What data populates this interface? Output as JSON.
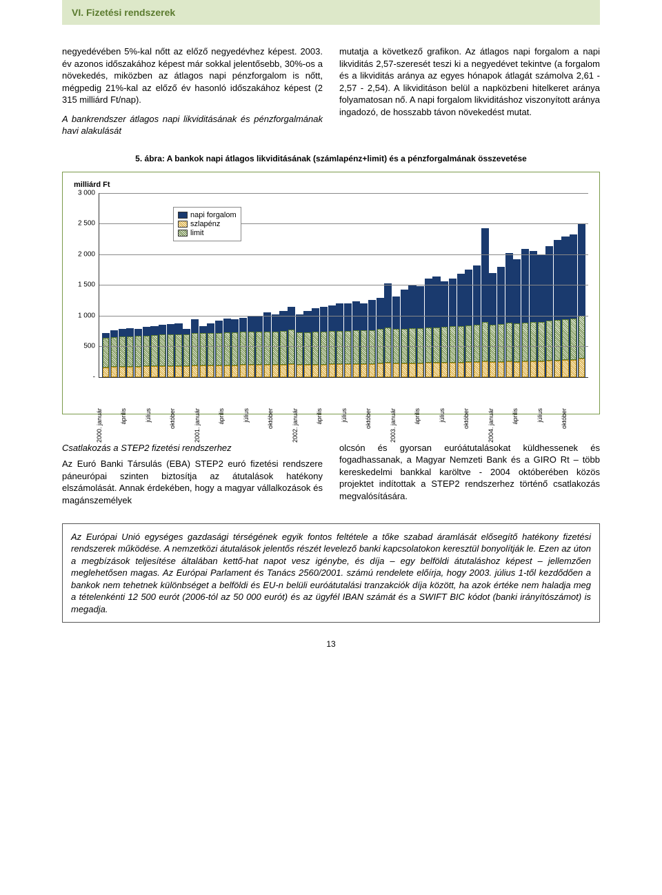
{
  "header": {
    "title": "VI. Fizetési rendszerek"
  },
  "para": {
    "left": "negyedévében 5%-kal nőtt az előző negyedévhez képest. 2003. év azonos időszakához képest már sokkal jelentősebb, 30%-os a növekedés, miközben az átlagos napi pénzforgalom is nőtt, mégpedig 21%-kal az előző év hasonló időszakához képest (2 315 milliárd Ft/nap).",
    "left_italic": "A bankrendszer átlagos napi likviditásának és pénzforgalmának havi alakulását",
    "right": "mutatja a következő grafikon. Az átlagos napi forgalom a napi likviditás 2,57-szeresét teszi ki a negyedévet tekintve (a forgalom és a likviditás aránya az egyes hónapok átlagát számolva 2,61 - 2,57 - 2,54). A likviditáson belül a napközbeni hitelkeret aránya folyamatosan nő. A napi forgalom likviditáshoz viszonyított aránya ingadozó, de hosszabb távon növekedést mutat."
  },
  "figure": {
    "title": "5. ábra: A bankok napi átlagos likviditásának (számlapénz+limit) és a pénzforgalmának összevetése",
    "y_unit": "milliárd Ft",
    "ylim": [
      0,
      3000
    ],
    "ytick_step": 500,
    "yticks": [
      "-",
      "500",
      "1 000",
      "1 500",
      "2 000",
      "2 500",
      "3 000"
    ],
    "legend": {
      "forgalom": "napi forgalom",
      "szlapenz": "szlapénz",
      "limit": "limit"
    },
    "colors": {
      "forgalom": "#1a3a6e",
      "szlapenz_line": "#b88a10",
      "limit_line": "#5a7a2e",
      "grid": "#888888",
      "border": "#7a9a4a"
    },
    "x_labels": [
      "2000. január",
      "április",
      "július",
      "október",
      "2001. január",
      "április",
      "július",
      "október",
      "2002. január",
      "április",
      "július",
      "október",
      "2003. január",
      "április",
      "július",
      "október",
      "2004. január",
      "április",
      "július",
      "október"
    ],
    "x_label_interval": 3,
    "series": {
      "forgalom": [
        720,
        760,
        780,
        800,
        790,
        820,
        830,
        850,
        860,
        880,
        780,
        940,
        830,
        870,
        920,
        950,
        940,
        970,
        1000,
        990,
        1050,
        1020,
        1080,
        1140,
        1020,
        1080,
        1120,
        1140,
        1170,
        1200,
        1200,
        1230,
        1200,
        1260,
        1290,
        1530,
        1310,
        1430,
        1500,
        1480,
        1600,
        1640,
        1560,
        1600,
        1680,
        1750,
        1820,
        2420,
        1690,
        1800,
        2020,
        1920,
        2090,
        2050,
        2000,
        2130,
        2230,
        2290,
        2320,
        2500
      ],
      "limit": [
        480,
        480,
        490,
        490,
        500,
        500,
        510,
        510,
        520,
        520,
        520,
        530,
        530,
        530,
        530,
        540,
        540,
        540,
        540,
        540,
        540,
        545,
        545,
        560,
        530,
        530,
        530,
        530,
        540,
        540,
        540,
        550,
        550,
        550,
        560,
        580,
        560,
        565,
        570,
        570,
        580,
        580,
        585,
        590,
        595,
        600,
        610,
        640,
        610,
        615,
        630,
        625,
        635,
        640,
        640,
        650,
        660,
        670,
        675,
        700
      ],
      "szlapenz": [
        160,
        165,
        170,
        170,
        170,
        175,
        175,
        180,
        180,
        180,
        180,
        190,
        185,
        185,
        190,
        190,
        190,
        195,
        195,
        200,
        200,
        200,
        205,
        210,
        200,
        200,
        205,
        205,
        210,
        210,
        210,
        215,
        215,
        215,
        220,
        230,
        220,
        225,
        225,
        225,
        230,
        230,
        230,
        235,
        235,
        240,
        245,
        260,
        245,
        245,
        255,
        250,
        255,
        260,
        260,
        265,
        270,
        275,
        280,
        300
      ]
    }
  },
  "section2": {
    "heading_left": "Csatlakozás a STEP2 fizetési rendszerhez",
    "left": "Az Euró Banki Társulás (EBA) STEP2 euró fizetési rendszere páneurópai szinten biztosítja az átutalások hatékony elszámolását. Annak érdekében, hogy a magyar vállalkozások és magánszemélyek",
    "right": "olcsón és gyorsan euróátutalásokat küldhessenek és fogadhassanak, a Magyar Nemzeti Bank és a GIRO Rt – több kereskedelmi bankkal karöltve - 2004 októberében közös projektet indítottak a STEP2 rendszerhez történő csatlakozás megvalósítására."
  },
  "callout": "Az Európai Unió egységes gazdasági térségének egyik fontos feltétele a tőke szabad áramlását elősegítő hatékony fizetési rendszerek működése. A nemzetközi átutalások jelentős részét levelező banki kapcsolatokon keresztül bonyolítják le. Ezen az úton a megbízások teljesítése általában kettő-hat napot vesz igénybe, és díja – egy belföldi átutaláshoz képest – jellemzően meglehetősen magas. Az Európai Parlament és Tanács 2560/2001. számú rendelete előírja, hogy 2003. július 1-től kezdődően a bankok nem tehetnek különbséget a belföldi és EU-n belüli euróátutalási tranzakciók díja között, ha azok értéke nem haladja meg a tételenkénti 12 500 eurót (2006-tól az 50 000 eurót) és az ügyfél IBAN számát és a SWIFT BIC kódot (banki irányítószámot) is megadja.",
  "page_number": "13"
}
